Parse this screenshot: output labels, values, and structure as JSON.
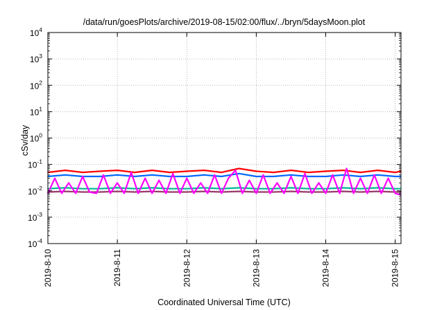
{
  "chart_data": {
    "type": "line",
    "title": "/data/run/goesPlots/archive/2019-08-15/02:00/flux/../bryn/5daysMoon.plot",
    "xlabel": "Coordinated Universal Time (UTC)",
    "ylabel": "cSv/day",
    "yscale": "log",
    "ylim": [
      0.0001,
      10000
    ],
    "xlim": [
      "2019-8-10",
      "2019-8-15 02:00"
    ],
    "grid": true,
    "legend": "none",
    "y_ticks": [
      {
        "base": "10",
        "exp": "-4",
        "value": 0.0001
      },
      {
        "base": "10",
        "exp": "-3",
        "value": 0.001
      },
      {
        "base": "10",
        "exp": "-2",
        "value": 0.01
      },
      {
        "base": "10",
        "exp": "-1",
        "value": 0.1
      },
      {
        "base": "10",
        "exp": "0",
        "value": 1
      },
      {
        "base": "10",
        "exp": "1",
        "value": 10
      },
      {
        "base": "10",
        "exp": "2",
        "value": 100
      },
      {
        "base": "10",
        "exp": "3",
        "value": 1000
      },
      {
        "base": "10",
        "exp": "4",
        "value": 10000
      }
    ],
    "x_ticks": [
      {
        "label": "2019-8-10",
        "day": 0
      },
      {
        "label": "2019-8-11",
        "day": 1
      },
      {
        "label": "2019-8-12",
        "day": 2
      },
      {
        "label": "2019-8-13",
        "day": 3
      },
      {
        "label": "2019-8-14",
        "day": 4
      },
      {
        "label": "2019-8-15",
        "day": 5
      }
    ],
    "series": [
      {
        "color": "#ff0000",
        "x": [
          0,
          0.25,
          0.5,
          0.75,
          1,
          1.25,
          1.5,
          1.75,
          2,
          2.25,
          2.5,
          2.75,
          3,
          3.25,
          3.5,
          3.75,
          4,
          4.25,
          4.5,
          4.75,
          5,
          5.08
        ],
        "values": [
          0.05,
          0.06,
          0.05,
          0.055,
          0.06,
          0.05,
          0.06,
          0.05,
          0.055,
          0.06,
          0.05,
          0.07,
          0.055,
          0.05,
          0.06,
          0.05,
          0.055,
          0.06,
          0.05,
          0.06,
          0.05,
          0.055
        ]
      },
      {
        "color": "#0066ff",
        "x": [
          0,
          0.25,
          0.5,
          0.75,
          1,
          1.25,
          1.5,
          1.75,
          2,
          2.25,
          2.5,
          2.75,
          3,
          3.25,
          3.5,
          3.75,
          4,
          4.25,
          4.5,
          4.75,
          5,
          5.08
        ],
        "values": [
          0.035,
          0.04,
          0.035,
          0.035,
          0.04,
          0.035,
          0.04,
          0.035,
          0.035,
          0.04,
          0.035,
          0.045,
          0.035,
          0.035,
          0.04,
          0.035,
          0.035,
          0.04,
          0.035,
          0.04,
          0.035,
          0.035
        ]
      },
      {
        "color": "#00b894",
        "x": [
          0,
          0.25,
          0.5,
          0.75,
          1,
          1.25,
          1.5,
          1.75,
          2,
          2.25,
          2.5,
          2.75,
          3,
          3.25,
          3.5,
          3.75,
          4,
          4.25,
          4.5,
          4.75,
          5,
          5.08
        ],
        "values": [
          0.012,
          0.013,
          0.012,
          0.012,
          0.013,
          0.012,
          0.013,
          0.012,
          0.012,
          0.013,
          0.012,
          0.013,
          0.012,
          0.012,
          0.013,
          0.012,
          0.012,
          0.013,
          0.012,
          0.013,
          0.012,
          0.012
        ]
      },
      {
        "color": "#9b3a6e",
        "x": [
          0,
          0.25,
          0.5,
          0.75,
          1,
          1.25,
          1.5,
          1.75,
          2,
          2.25,
          2.5,
          2.75,
          3,
          3.25,
          3.5,
          3.75,
          4,
          4.25,
          4.5,
          4.75,
          5,
          5.08
        ],
        "values": [
          0.009,
          0.0095,
          0.009,
          0.009,
          0.0095,
          0.009,
          0.0095,
          0.009,
          0.009,
          0.0095,
          0.009,
          0.0095,
          0.009,
          0.009,
          0.0095,
          0.009,
          0.009,
          0.0095,
          0.009,
          0.0095,
          0.009,
          0.009
        ]
      },
      {
        "color": "#ff00ff",
        "x": [
          0,
          0.1,
          0.2,
          0.3,
          0.4,
          0.5,
          0.6,
          0.7,
          0.8,
          0.9,
          1,
          1.1,
          1.2,
          1.3,
          1.4,
          1.5,
          1.6,
          1.7,
          1.8,
          1.9,
          2,
          2.1,
          2.2,
          2.3,
          2.4,
          2.5,
          2.6,
          2.7,
          2.8,
          2.9,
          3,
          3.1,
          3.2,
          3.3,
          3.4,
          3.5,
          3.6,
          3.7,
          3.8,
          3.9,
          4,
          4.1,
          4.2,
          4.3,
          4.4,
          4.5,
          4.6,
          4.7,
          4.8,
          4.9,
          5,
          5.08
        ],
        "values": [
          0.008,
          0.03,
          0.008,
          0.02,
          0.008,
          0.035,
          0.009,
          0.008,
          0.04,
          0.008,
          0.02,
          0.008,
          0.05,
          0.008,
          0.03,
          0.008,
          0.025,
          0.008,
          0.045,
          0.008,
          0.03,
          0.008,
          0.02,
          0.008,
          0.04,
          0.008,
          0.03,
          0.06,
          0.008,
          0.025,
          0.008,
          0.04,
          0.008,
          0.02,
          0.008,
          0.035,
          0.008,
          0.045,
          0.008,
          0.02,
          0.008,
          0.04,
          0.008,
          0.07,
          0.008,
          0.03,
          0.008,
          0.04,
          0.008,
          0.03,
          0.008,
          0.007
        ]
      }
    ]
  }
}
